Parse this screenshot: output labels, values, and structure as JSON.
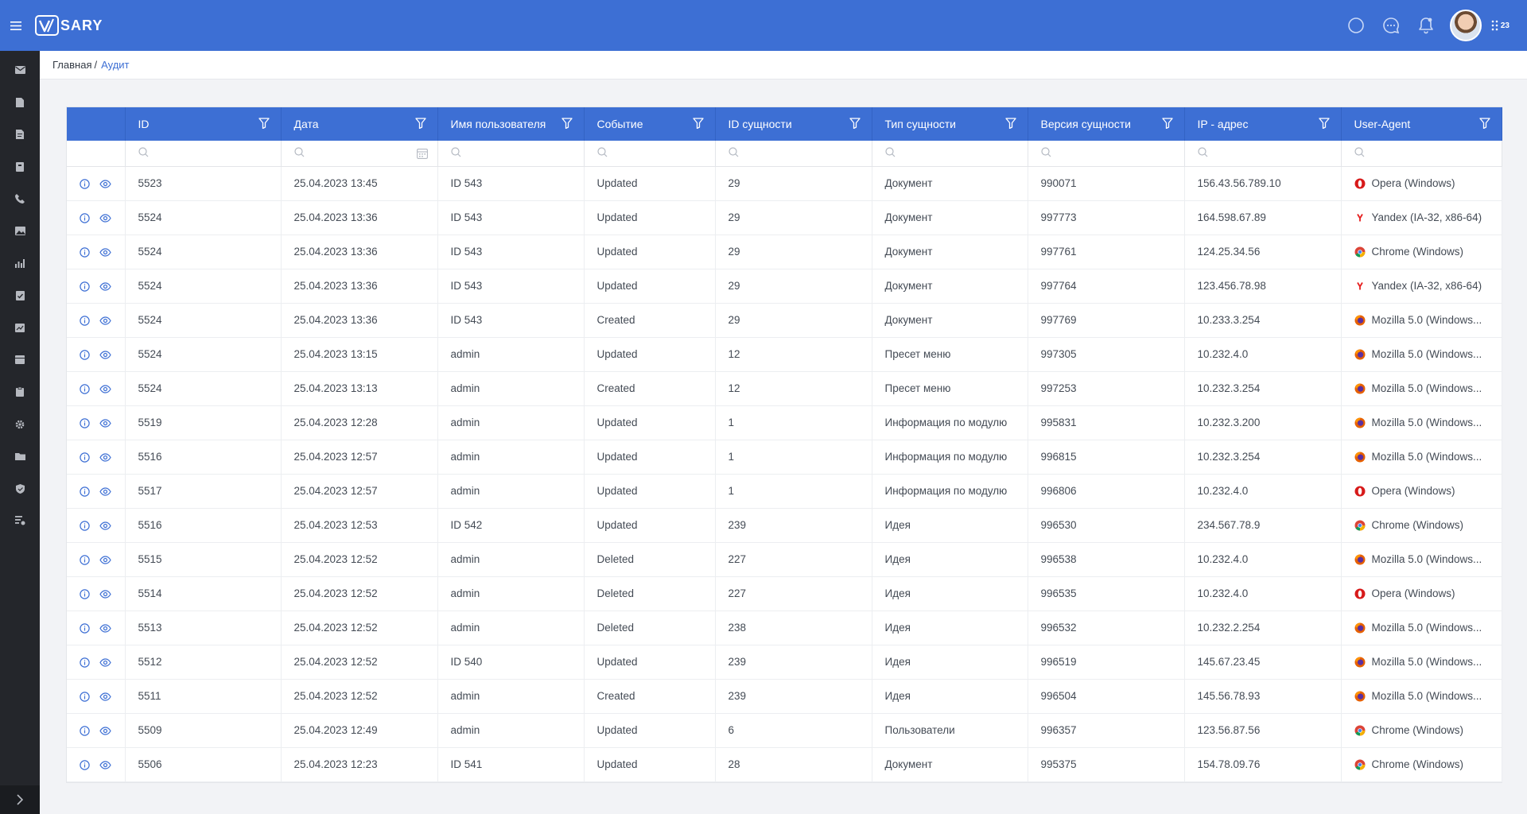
{
  "header": {
    "logo_text": "V/SARY",
    "apps_count": "23",
    "brand_color": "#3d6fd4"
  },
  "breadcrumb": {
    "home": "Главная",
    "separator": "/",
    "current": "Аудит"
  },
  "sidebar": {
    "items": [
      "mail-icon",
      "document-icon",
      "document-text-icon",
      "book-icon",
      "phone-icon",
      "image-icon",
      "chart-icon",
      "task-icon",
      "report-icon",
      "calendar-icon",
      "clipboard-icon",
      "settings-icon",
      "folder-icon",
      "shield-icon",
      "list-settings-icon"
    ]
  },
  "table": {
    "columns": [
      "ID",
      "Дата",
      "Имя пользователя",
      "Событие",
      "ID сущности",
      "Тип сущности",
      "Версия сущности",
      "IP - адрес",
      "User-Agent"
    ],
    "rows": [
      {
        "id": "5523",
        "date": "25.04.2023 13:45",
        "user": "ID 543",
        "event": "Updated",
        "entity_id": "29",
        "entity_type": "Документ",
        "version": "990071",
        "ip": "156.43.56.789.10",
        "browser": "opera",
        "agent": "Opera (Windows)"
      },
      {
        "id": "5524",
        "date": "25.04.2023 13:36",
        "user": "ID 543",
        "event": "Updated",
        "entity_id": "29",
        "entity_type": "Документ",
        "version": "997773",
        "ip": "164.598.67.89",
        "browser": "yandex",
        "agent": "Yandex (IA-32, x86-64)"
      },
      {
        "id": "5524",
        "date": "25.04.2023 13:36",
        "user": "ID 543",
        "event": "Updated",
        "entity_id": "29",
        "entity_type": "Документ",
        "version": "997761",
        "ip": "124.25.34.56",
        "browser": "chrome",
        "agent": "Chrome (Windows)"
      },
      {
        "id": "5524",
        "date": "25.04.2023 13:36",
        "user": "ID 543",
        "event": "Updated",
        "entity_id": "29",
        "entity_type": "Документ",
        "version": "997764",
        "ip": "123.456.78.98",
        "browser": "yandex",
        "agent": "Yandex (IA-32, x86-64)"
      },
      {
        "id": "5524",
        "date": "25.04.2023 13:36",
        "user": "ID 543",
        "event": "Created",
        "entity_id": "29",
        "entity_type": "Документ",
        "version": "997769",
        "ip": "10.233.3.254",
        "browser": "firefox",
        "agent": "Mozilla 5.0 (Windows..."
      },
      {
        "id": "5524",
        "date": "25.04.2023 13:15",
        "user": "admin",
        "event": "Updated",
        "entity_id": "12",
        "entity_type": "Пресет меню",
        "version": "997305",
        "ip": "10.232.4.0",
        "browser": "firefox",
        "agent": "Mozilla 5.0 (Windows..."
      },
      {
        "id": "5524",
        "date": "25.04.2023 13:13",
        "user": "admin",
        "event": "Created",
        "entity_id": "12",
        "entity_type": "Пресет меню",
        "version": "997253",
        "ip": "10.232.3.254",
        "browser": "firefox",
        "agent": "Mozilla 5.0 (Windows..."
      },
      {
        "id": "5519",
        "date": "25.04.2023 12:28",
        "user": "admin",
        "event": "Updated",
        "entity_id": "1",
        "entity_type": "Информация по модулю",
        "version": "995831",
        "ip": "10.232.3.200",
        "browser": "firefox",
        "agent": "Mozilla 5.0 (Windows..."
      },
      {
        "id": "5516",
        "date": "25.04.2023 12:57",
        "user": "admin",
        "event": "Updated",
        "entity_id": "1",
        "entity_type": "Информация по модулю",
        "version": "996815",
        "ip": "10.232.3.254",
        "browser": "firefox",
        "agent": "Mozilla 5.0 (Windows..."
      },
      {
        "id": "5517",
        "date": "25.04.2023 12:57",
        "user": "admin",
        "event": "Updated",
        "entity_id": "1",
        "entity_type": "Информация по модулю",
        "version": "996806",
        "ip": "10.232.4.0",
        "browser": "opera",
        "agent": "Opera (Windows)"
      },
      {
        "id": "5516",
        "date": "25.04.2023 12:53",
        "user": "ID 542",
        "event": "Updated",
        "entity_id": "239",
        "entity_type": "Идея",
        "version": "996530",
        "ip": "234.567.78.9",
        "browser": "chrome",
        "agent": "Chrome (Windows)"
      },
      {
        "id": "5515",
        "date": "25.04.2023 12:52",
        "user": "admin",
        "event": "Deleted",
        "entity_id": "227",
        "entity_type": "Идея",
        "version": "996538",
        "ip": "10.232.4.0",
        "browser": "firefox",
        "agent": "Mozilla 5.0 (Windows..."
      },
      {
        "id": "5514",
        "date": "25.04.2023 12:52",
        "user": "admin",
        "event": "Deleted",
        "entity_id": "227",
        "entity_type": "Идея",
        "version": "996535",
        "ip": "10.232.4.0",
        "browser": "opera",
        "agent": "Opera (Windows)"
      },
      {
        "id": "5513",
        "date": "25.04.2023 12:52",
        "user": "admin",
        "event": "Deleted",
        "entity_id": "238",
        "entity_type": "Идея",
        "version": "996532",
        "ip": "10.232.2.254",
        "browser": "firefox",
        "agent": "Mozilla 5.0 (Windows..."
      },
      {
        "id": "5512",
        "date": "25.04.2023 12:52",
        "user": "ID 540",
        "event": "Updated",
        "entity_id": "239",
        "entity_type": "Идея",
        "version": "996519",
        "ip": "145.67.23.45",
        "browser": "firefox",
        "agent": "Mozilla 5.0 (Windows..."
      },
      {
        "id": "5511",
        "date": "25.04.2023 12:52",
        "user": "admin",
        "event": "Created",
        "entity_id": "239",
        "entity_type": "Идея",
        "version": "996504",
        "ip": "145.56.78.93",
        "browser": "firefox",
        "agent": "Mozilla 5.0 (Windows..."
      },
      {
        "id": "5509",
        "date": "25.04.2023 12:49",
        "user": "admin",
        "event": "Updated",
        "entity_id": "6",
        "entity_type": "Пользователи",
        "version": "996357",
        "ip": "123.56.87.56",
        "browser": "chrome",
        "agent": "Chrome (Windows)"
      },
      {
        "id": "5506",
        "date": "25.04.2023 12:23",
        "user": "ID 541",
        "event": "Updated",
        "entity_id": "28",
        "entity_type": "Документ",
        "version": "995375",
        "ip": "154.78.09.76",
        "browser": "chrome",
        "agent": "Chrome (Windows)"
      }
    ]
  }
}
